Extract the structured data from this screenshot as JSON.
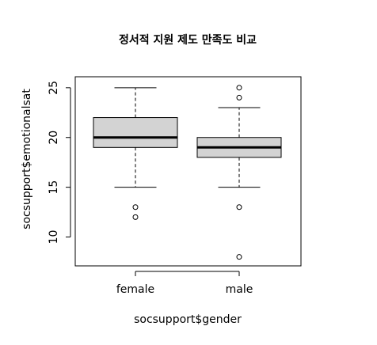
{
  "chart_data": {
    "type": "boxplot",
    "title": "정서적 지원 제도 만족도 비교",
    "xlabel": "socsupport$gender",
    "ylabel": "socsupport$emotionalsat",
    "categories": [
      "female",
      "male"
    ],
    "ylim": [
      7,
      27
    ],
    "yticks": [
      10,
      15,
      20,
      25
    ],
    "grid": false,
    "legend": "none",
    "box_fill": "#d3d3d3",
    "line_color": "#000000",
    "boxes": [
      {
        "category": "female",
        "whisker_low": 15,
        "q1": 19,
        "median": 20,
        "q3": 22,
        "whisker_high": 25,
        "outliers": [
          13,
          12
        ]
      },
      {
        "category": "male",
        "whisker_low": 15,
        "q1": 18,
        "median": 19,
        "q3": 20,
        "whisker_high": 23,
        "outliers": [
          25,
          24,
          13,
          8
        ]
      }
    ]
  }
}
